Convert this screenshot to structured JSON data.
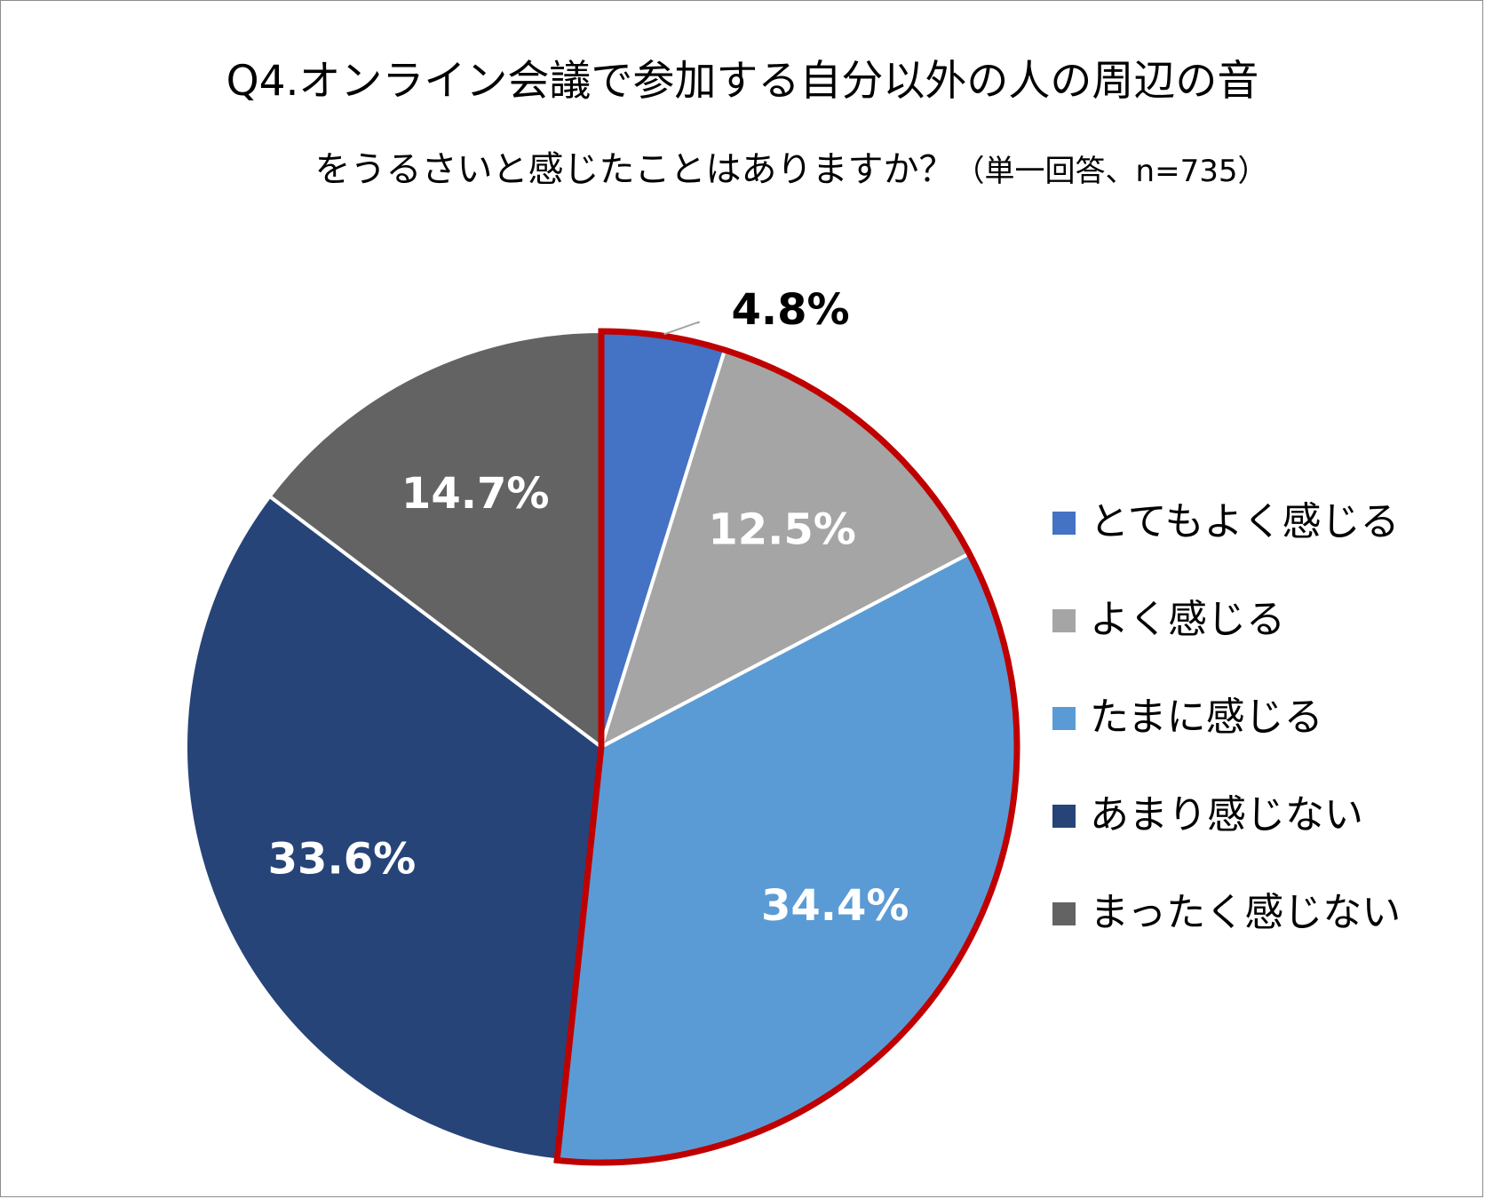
{
  "chart_data": {
    "type": "pie",
    "title": "Q4.オンライン会議で参加する自分以外の人の周辺の音",
    "title_line2": "をうるさいと感じたことはありますか？",
    "subtitle": "（単一回答、n=735）",
    "categories": [
      "とてもよく感じる",
      "よく感じる",
      "たまに感じる",
      "あまり感じない",
      "まったく感じない"
    ],
    "values": [
      4.8,
      12.5,
      34.4,
      33.6,
      14.7
    ],
    "data_labels": [
      "4.8%",
      "12.5%",
      "34.4%",
      "33.6%",
      "14.7%"
    ],
    "colors": [
      "#4472c4",
      "#a5a5a5",
      "#5b9bd5",
      "#264478",
      "#636363"
    ],
    "highlight": {
      "slices": [
        0,
        1,
        2
      ],
      "color": "#c00000"
    },
    "start": "12 o'clock, clockwise",
    "legend_position": "right"
  }
}
